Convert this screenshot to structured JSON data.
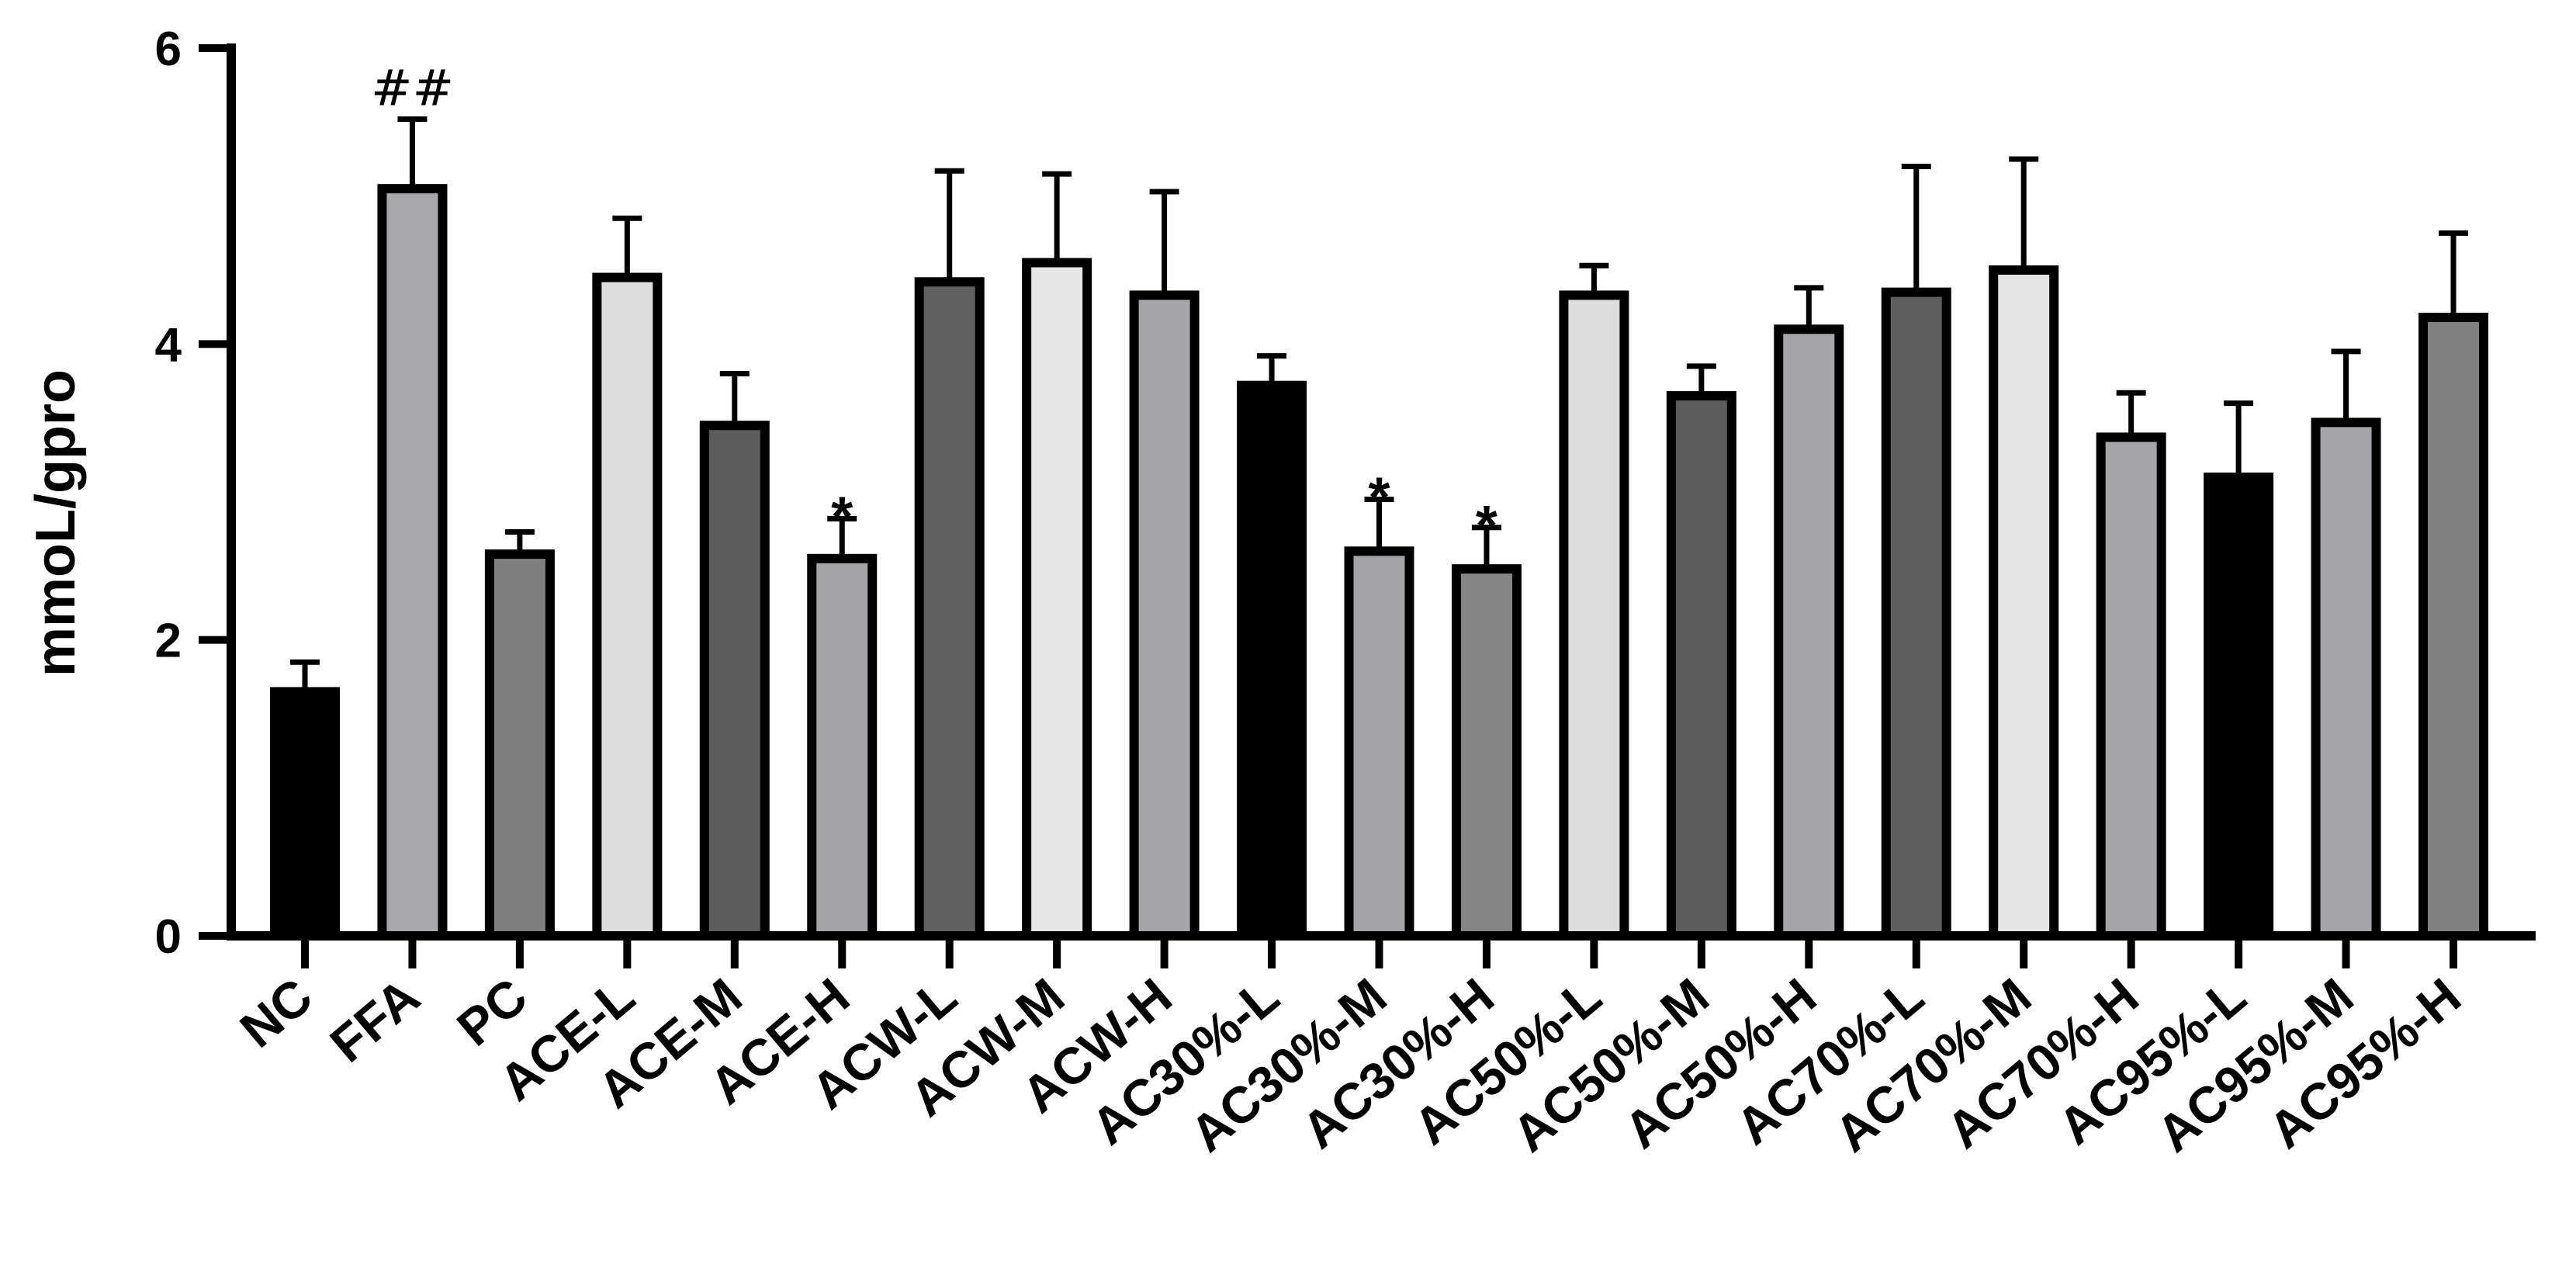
{
  "chart_data": {
    "type": "bar",
    "ylabel": "mmoL/gpro",
    "xlabel": "",
    "title": "",
    "ylim": [
      0,
      6
    ],
    "yticks": [
      0,
      2,
      4,
      6
    ],
    "grid": false,
    "legend": "none",
    "categories": [
      "NC",
      "FFA",
      "PC",
      "ACE-L",
      "ACE-M",
      "ACE-H",
      "ACW-L",
      "ACW-M",
      "ACW-H",
      "AC30%-L",
      "AC30%-M",
      "AC30%-H",
      "AC50%-L",
      "AC50%-M",
      "AC50%-H",
      "AC70%-L",
      "AC70%-M",
      "AC70%-H",
      "AC95%-L",
      "AC95%-M",
      "AC95%-H"
    ],
    "values": [
      1.65,
      5.05,
      2.58,
      4.45,
      3.45,
      2.55,
      4.42,
      4.55,
      4.33,
      3.72,
      2.6,
      2.48,
      4.33,
      3.65,
      4.1,
      4.35,
      4.5,
      3.37,
      3.1,
      3.47,
      4.18
    ],
    "errors": [
      0.2,
      0.47,
      0.15,
      0.4,
      0.35,
      0.27,
      0.75,
      0.6,
      0.7,
      0.2,
      0.35,
      0.28,
      0.2,
      0.2,
      0.28,
      0.85,
      0.75,
      0.3,
      0.5,
      0.48,
      0.57
    ],
    "fills": [
      "#000000",
      "#a8a8ac",
      "#7f7f7f",
      "#dcdcdc",
      "#5c5c5c",
      "#a3a3a8",
      "#606060",
      "#e6e6e6",
      "#a6a6aa",
      "#000000",
      "#a3a3a8",
      "#858585",
      "#dcdcdc",
      "#5c5c5c",
      "#a6a6aa",
      "#5e5e5e",
      "#e4e4e4",
      "#a6a6aa",
      "#000000",
      "#a6a6aa",
      "#808080"
    ],
    "annotations": [
      {
        "category": "FFA",
        "text": "##"
      },
      {
        "category": "ACE-H",
        "text": "*"
      },
      {
        "category": "AC30%-M",
        "text": "*"
      },
      {
        "category": "AC30%-H",
        "text": "*"
      }
    ]
  }
}
